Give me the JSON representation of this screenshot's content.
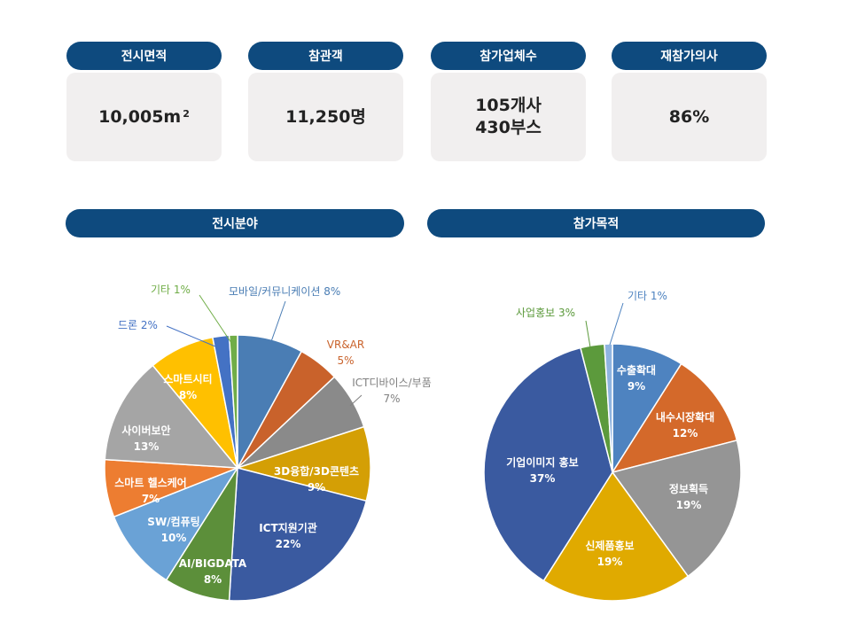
{
  "stats": [
    {
      "label": "전시면적",
      "value": "10,005m",
      "sup": "2"
    },
    {
      "label": "참관객",
      "value": "11,250명"
    },
    {
      "label": "참가업체수",
      "value": "105개사",
      "value2": "430부스"
    },
    {
      "label": "재참가의사",
      "value": "86%"
    }
  ],
  "sections": {
    "left_title": "전시분야",
    "right_title": "참가목적"
  },
  "chart_data": [
    {
      "type": "pie",
      "title": "전시분야",
      "slices": [
        {
          "label": "모바일/커뮤니케이션",
          "value": 8,
          "color": "#4a7db4"
        },
        {
          "label": "VR&AR",
          "value": 5,
          "color": "#c9622b"
        },
        {
          "label": "ICT디바이스/부품",
          "value": 7,
          "color": "#8a8a8a"
        },
        {
          "label": "3D융합/3D콘텐츠",
          "value": 9,
          "color": "#d49f05"
        },
        {
          "label": "ICT지원기관",
          "value": 22,
          "color": "#3a5aa0"
        },
        {
          "label": "AI/BIGDATA",
          "value": 8,
          "color": "#5c8f3a"
        },
        {
          "label": "SW/컴퓨팅",
          "value": 10,
          "color": "#6aa2d6"
        },
        {
          "label": "스마트 헬스케어",
          "value": 7,
          "color": "#ed7d31"
        },
        {
          "label": "사이버보안",
          "value": 13,
          "color": "#a5a5a5"
        },
        {
          "label": "스마트시티",
          "value": 8,
          "color": "#ffc000"
        },
        {
          "label": "드론",
          "value": 2,
          "color": "#4472c4"
        },
        {
          "label": "기타",
          "value": 1,
          "color": "#70ad47"
        }
      ]
    },
    {
      "type": "pie",
      "title": "참가목적",
      "slices": [
        {
          "label": "수출확대",
          "value": 9,
          "color": "#4e83c0"
        },
        {
          "label": "내수시장확대",
          "value": 12,
          "color": "#d4692a"
        },
        {
          "label": "정보획득",
          "value": 19,
          "color": "#959595"
        },
        {
          "label": "신제품홍보",
          "value": 19,
          "color": "#e0aa00"
        },
        {
          "label": "기업이미지 홍보",
          "value": 37,
          "color": "#3a5aa0"
        },
        {
          "label": "사업홍보",
          "value": 3,
          "color": "#5c9a3c"
        },
        {
          "label": "기타",
          "value": 1,
          "color": "#8fb4e0"
        }
      ]
    }
  ]
}
